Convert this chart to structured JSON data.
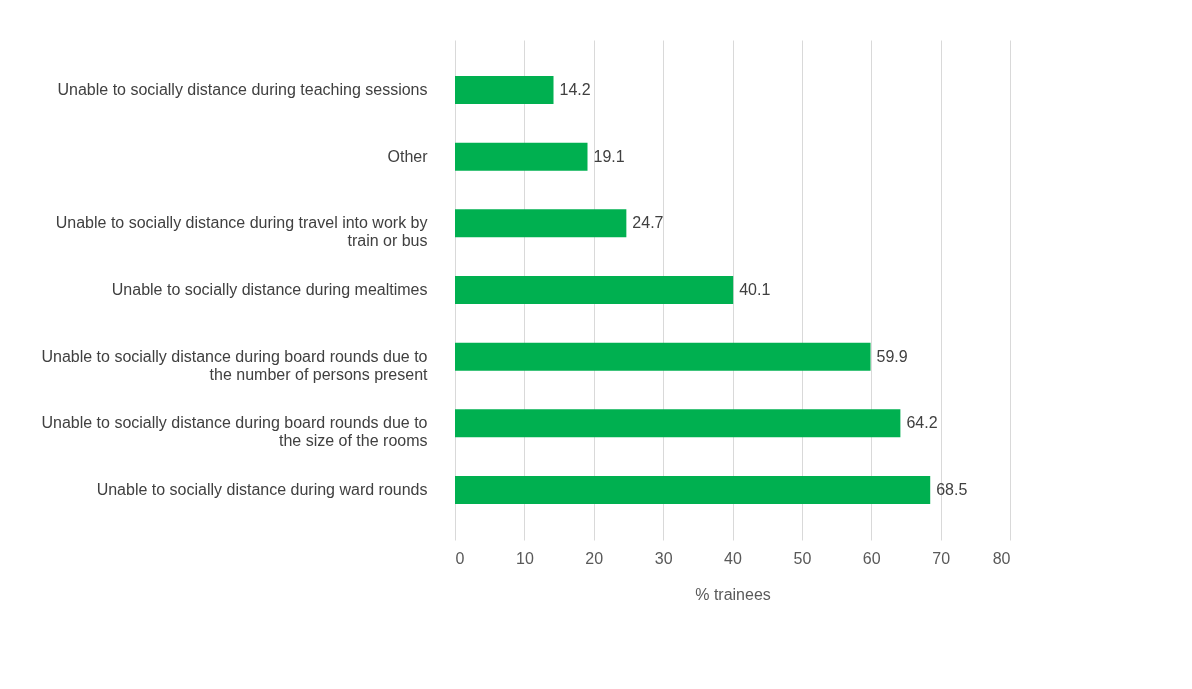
{
  "chart_data": {
    "type": "bar",
    "orientation": "horizontal",
    "xlabel": "% trainees",
    "categories": [
      "Unable to socially distance during teaching sessions",
      "Other",
      "Unable to socially distance during travel into work by train or bus",
      "Unable to socially distance during mealtimes",
      "Unable to socially distance during board rounds due to the number of persons present",
      "Unable to socially distance during board rounds due to the size of the rooms",
      "Unable to socially distance during ward rounds"
    ],
    "values": [
      14.2,
      19.1,
      24.7,
      40.1,
      59.9,
      64.2,
      68.5
    ],
    "color": "#00b050",
    "xlim": [
      0,
      80
    ],
    "xticks": [
      0,
      10,
      20,
      30,
      40,
      50,
      60,
      70,
      80
    ],
    "grid": "x",
    "data_labels": true
  }
}
